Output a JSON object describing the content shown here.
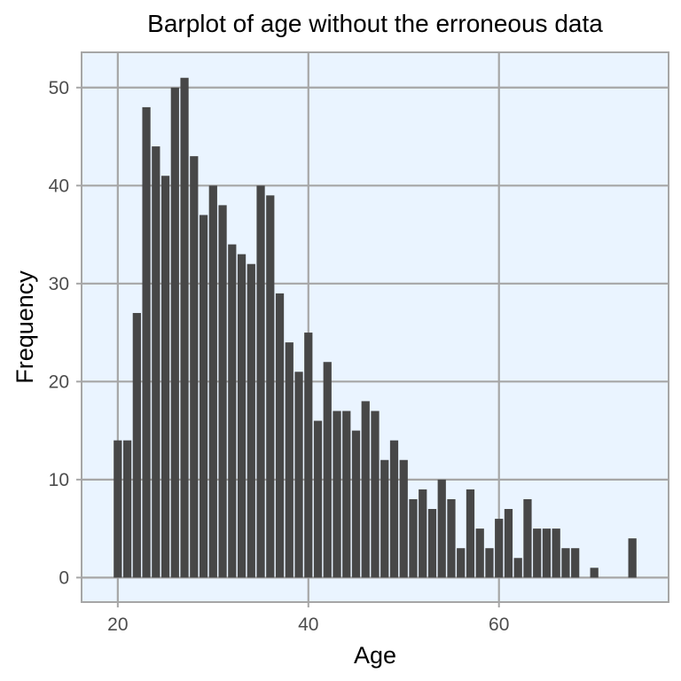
{
  "chart_data": {
    "type": "bar",
    "title": "Barplot of age without the erroneous data",
    "xlabel": "Age",
    "ylabel": "Frequency",
    "x": [
      20,
      21,
      22,
      23,
      24,
      25,
      26,
      27,
      28,
      29,
      30,
      31,
      32,
      33,
      34,
      35,
      36,
      37,
      38,
      39,
      40,
      41,
      42,
      43,
      44,
      45,
      46,
      47,
      48,
      49,
      50,
      51,
      52,
      53,
      54,
      55,
      56,
      57,
      58,
      59,
      60,
      61,
      62,
      63,
      64,
      65,
      66,
      67,
      68,
      69,
      70,
      71,
      72,
      73,
      74
    ],
    "values": [
      14,
      14,
      27,
      48,
      44,
      41,
      50,
      51,
      43,
      37,
      40,
      38,
      34,
      33,
      32,
      40,
      39,
      29,
      24,
      21,
      25,
      16,
      22,
      17,
      17,
      15,
      18,
      17,
      12,
      14,
      12,
      8,
      9,
      7,
      10,
      8,
      3,
      9,
      5,
      3,
      6,
      7,
      2,
      8,
      5,
      5,
      5,
      3,
      3,
      0,
      1,
      0,
      0,
      0,
      4
    ],
    "xlim": [
      16.2,
      77.8
    ],
    "ylim": [
      -2.5,
      53.6
    ],
    "xticks": [
      20,
      40,
      60
    ],
    "yticks": [
      0,
      10,
      20,
      30,
      40,
      50
    ],
    "bar_color": "#474747",
    "panel_color": "#eaf4ff",
    "grid_color": "#a6a6a6",
    "grid": true,
    "legend": "none"
  }
}
